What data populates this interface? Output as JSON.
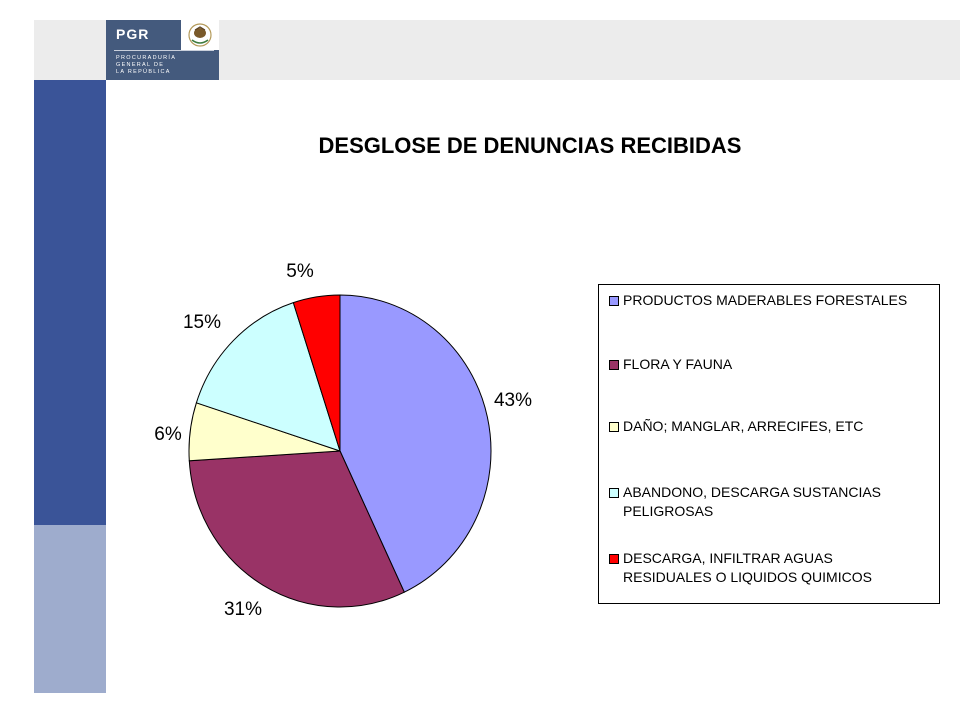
{
  "header": {
    "logo_text": "PGR",
    "logo_subtitle": "PROCURADURÍA\nGENERAL DE\nLA REPÚBLICA",
    "emblem_icon": "mexican-eagle-emblem-icon"
  },
  "colors": {
    "sidebar_dark": "#3a5498",
    "sidebar_light": "#9eaccd",
    "top_bar": "#ececec",
    "logo_bg": "#445a7d"
  },
  "chart_data": {
    "type": "pie",
    "title": "DESGLOSE DE DENUNCIAS RECIBIDAS",
    "legend_position": "right",
    "slices": [
      {
        "name": "PRODUCTOS MADERABLES FORESTALES",
        "value": 43,
        "label": "43%",
        "color": "#9999ff"
      },
      {
        "name": "FLORA Y FAUNA",
        "value": 31,
        "label": "31%",
        "color": "#993366"
      },
      {
        "name": "DAÑO; MANGLAR, ARRECIFES, ETC",
        "value": 6,
        "label": "6%",
        "color": "#ffffcc"
      },
      {
        "name": "ABANDONO, DESCARGA SUSTANCIAS PELIGROSAS",
        "value": 15,
        "label": "15%",
        "color": "#ccffff"
      },
      {
        "name": "DESCARGA, INFILTRAR AGUAS RESIDUALES O LIQUIDOS QUIMICOS",
        "value": 5,
        "label": "5%",
        "color": "#ff0000"
      }
    ]
  }
}
